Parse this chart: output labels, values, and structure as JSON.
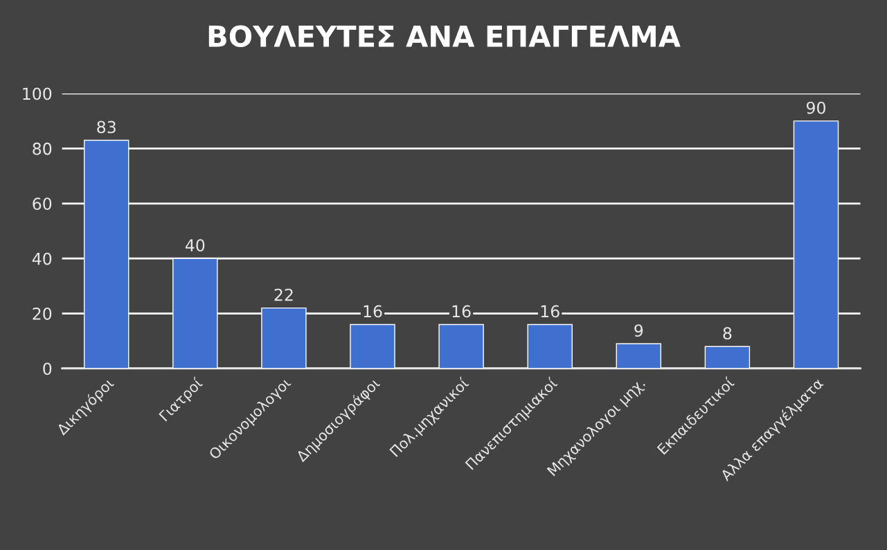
{
  "chart_data": {
    "type": "bar",
    "title": "ΒΟΥΛΕΥΤΕΣ ΑΝΑ ΕΠΑΓΓΕΛΜΑ",
    "categories": [
      "Δικηγόροι",
      "Γιατροί",
      "Οικονομολογοι",
      "Δημοσιογράφοι",
      "Πολ.μηχανικοί",
      "Πανεπιστημιακοί",
      "Μηχανολογοι μηχ.",
      "Εκπαιδευτικοί",
      "Αλλα επαγγέλματα"
    ],
    "values": [
      83,
      40,
      22,
      16,
      16,
      16,
      9,
      8,
      90
    ],
    "color": "#3f70d0",
    "ylim": [
      0,
      100
    ],
    "yticks": [
      0,
      20,
      40,
      60,
      80,
      100
    ],
    "grid": "y",
    "data_labels": true
  }
}
